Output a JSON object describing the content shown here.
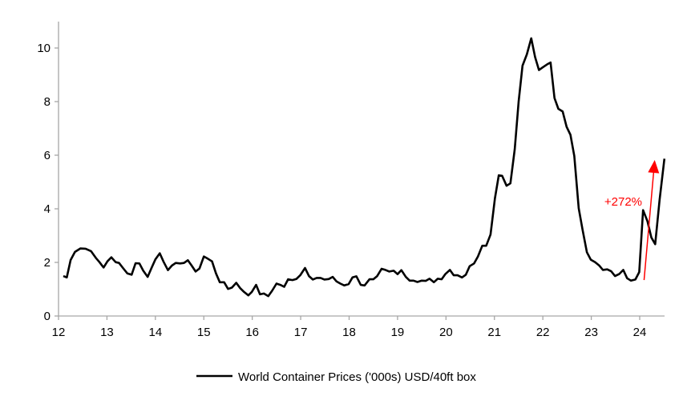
{
  "chart_data": {
    "type": "line",
    "title": "",
    "xlabel": "",
    "ylabel": "",
    "xlim": [
      12,
      24.51
    ],
    "ylim": [
      0,
      11
    ],
    "grid": false,
    "legend_placement": "bottom",
    "x_ticks": [
      12,
      13,
      14,
      15,
      16,
      17,
      18,
      19,
      20,
      21,
      22,
      23,
      24
    ],
    "x_tick_labels": [
      "12",
      "13",
      "14",
      "15",
      "16",
      "17",
      "18",
      "19",
      "20",
      "21",
      "22",
      "23",
      "24"
    ],
    "y_ticks": [
      0,
      2,
      4,
      6,
      8,
      10
    ],
    "y_tick_labels": [
      "0",
      "2",
      "4",
      "6",
      "8",
      "10"
    ],
    "colors": {
      "series": "#000000",
      "axis": "#a6a6a6",
      "annotation": "#ff0000"
    },
    "series": [
      {
        "name": "World Container Prices ('000s) USD/40ft box",
        "x": [
          12.1,
          12.17,
          12.25,
          12.34,
          12.45,
          12.56,
          12.67,
          12.77,
          12.84,
          12.93,
          13.01,
          13.09,
          13.18,
          13.25,
          13.33,
          13.42,
          13.51,
          13.59,
          13.67,
          13.75,
          13.84,
          13.92,
          14.0,
          14.09,
          14.17,
          14.26,
          14.34,
          14.42,
          14.51,
          14.59,
          14.67,
          14.75,
          14.83,
          14.91,
          15.0,
          15.08,
          15.17,
          15.25,
          15.33,
          15.42,
          15.5,
          15.58,
          15.67,
          15.75,
          15.83,
          15.92,
          15.99,
          16.08,
          16.16,
          16.24,
          16.33,
          16.41,
          16.5,
          16.58,
          16.66,
          16.74,
          16.83,
          16.91,
          16.99,
          17.09,
          17.17,
          17.25,
          17.33,
          17.41,
          17.49,
          17.58,
          17.66,
          17.74,
          17.82,
          17.9,
          17.99,
          18.07,
          18.15,
          18.24,
          18.32,
          18.42,
          18.5,
          18.58,
          18.67,
          18.75,
          18.83,
          18.92,
          19.0,
          19.08,
          19.17,
          19.25,
          19.33,
          19.41,
          19.5,
          19.58,
          19.66,
          19.75,
          19.83,
          19.91,
          19.99,
          20.08,
          20.16,
          20.24,
          20.33,
          20.41,
          20.49,
          20.58,
          20.66,
          20.75,
          20.83,
          20.92,
          21.01,
          21.09,
          21.16,
          21.25,
          21.33,
          21.42,
          21.5,
          21.58,
          21.67,
          21.76,
          21.84,
          21.92,
          22.0,
          22.09,
          22.16,
          22.24,
          22.32,
          22.41,
          22.49,
          22.57,
          22.65,
          22.74,
          22.82,
          22.91,
          22.99,
          23.08,
          23.16,
          23.24,
          23.33,
          23.41,
          23.49,
          23.58,
          23.66,
          23.74,
          23.82,
          23.91,
          23.99,
          24.07,
          24.16,
          24.24,
          24.32,
          24.41,
          24.51
        ],
        "values": [
          1.49,
          1.44,
          2.09,
          2.39,
          2.52,
          2.51,
          2.42,
          2.17,
          2.02,
          1.81,
          2.04,
          2.19,
          2.01,
          1.98,
          1.79,
          1.59,
          1.54,
          1.97,
          1.96,
          1.69,
          1.46,
          1.79,
          2.11,
          2.34,
          2.02,
          1.71,
          1.88,
          1.98,
          1.96,
          1.98,
          2.08,
          1.88,
          1.66,
          1.77,
          2.22,
          2.14,
          2.04,
          1.59,
          1.26,
          1.26,
          1.01,
          1.06,
          1.24,
          1.04,
          0.9,
          0.77,
          0.9,
          1.16,
          0.81,
          0.84,
          0.74,
          0.94,
          1.21,
          1.16,
          1.09,
          1.37,
          1.34,
          1.38,
          1.52,
          1.79,
          1.49,
          1.36,
          1.42,
          1.42,
          1.36,
          1.38,
          1.46,
          1.29,
          1.21,
          1.14,
          1.19,
          1.44,
          1.48,
          1.16,
          1.14,
          1.37,
          1.37,
          1.49,
          1.76,
          1.72,
          1.66,
          1.69,
          1.56,
          1.71,
          1.46,
          1.32,
          1.32,
          1.27,
          1.32,
          1.31,
          1.39,
          1.26,
          1.39,
          1.37,
          1.57,
          1.72,
          1.52,
          1.52,
          1.44,
          1.54,
          1.86,
          1.96,
          2.22,
          2.62,
          2.62,
          3.04,
          4.39,
          5.25,
          5.23,
          4.86,
          4.95,
          6.22,
          8.01,
          9.34,
          9.76,
          10.36,
          9.66,
          9.18,
          9.28,
          9.39,
          9.46,
          8.13,
          7.73,
          7.63,
          7.06,
          6.76,
          5.97,
          4.02,
          3.22,
          2.38,
          2.1,
          2.01,
          1.89,
          1.72,
          1.74,
          1.67,
          1.49,
          1.57,
          1.72,
          1.41,
          1.32,
          1.36,
          1.64,
          3.95,
          3.53,
          2.93,
          2.68,
          4.33,
          5.87
        ]
      }
    ],
    "annotations": [
      {
        "type": "arrow",
        "from": [
          24.09,
          1.34
        ],
        "to": [
          24.31,
          5.82
        ],
        "color": "#ff0000"
      },
      {
        "type": "text",
        "text": "+272%",
        "at": [
          24.05,
          4.27
        ],
        "color": "#ff0000"
      }
    ]
  }
}
